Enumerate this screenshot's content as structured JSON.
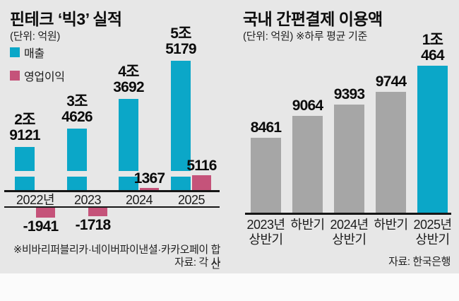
{
  "colors": {
    "background": "#e7e7e7",
    "footer_strip": "#fbfbfb",
    "revenue_teal": "#0ba7c8",
    "operating_pink": "#c5537a",
    "neutral_gray_bar": "#a6a6a6",
    "axis_line": "#161616"
  },
  "chart_data": [
    {
      "type": "bar",
      "title": "핀테크 ‘빅3’ 실적",
      "unit": "(단위: 억원)",
      "legend": [
        {
          "name": "매출",
          "color": "#0ba7c8"
        },
        {
          "name": "영업이익",
          "color": "#c5537a"
        }
      ],
      "categories": [
        "2022년",
        "2023",
        "2024",
        "2025"
      ],
      "series": [
        {
          "name": "매출",
          "values": [
            29121,
            34626,
            43692,
            55179
          ],
          "labels": [
            "2조\n9121",
            "3조\n4626",
            "4조\n3692",
            "5조\n5179"
          ]
        },
        {
          "name": "영업이익",
          "values": [
            -1941,
            -1718,
            1367,
            5116
          ],
          "labels": [
            "-1941",
            "-1718",
            "1367",
            "5116"
          ]
        }
      ],
      "axis_break": true,
      "footnote": "※비바리퍼블리카·네이버파이낸셜·카카오페이 합산",
      "source": "자료: 각 사"
    },
    {
      "type": "bar",
      "title": "국내 간편결제 이용액",
      "unit": "(단위: 억원)  ※하루 평균 기준",
      "categories": [
        "2023년\n상반기",
        "하반기",
        "2024년\n상반기",
        "하반기",
        "2025년\n상반기"
      ],
      "values": [
        8461,
        9064,
        9393,
        9744,
        10464
      ],
      "labels": [
        "8461",
        "9064",
        "9393",
        "9744",
        "1조\n464"
      ],
      "bar_colors": [
        "#a6a6a6",
        "#a6a6a6",
        "#a6a6a6",
        "#a6a6a6",
        "#0ba7c8"
      ],
      "highlight_index": 4,
      "source": "자료: 한국은행"
    }
  ]
}
